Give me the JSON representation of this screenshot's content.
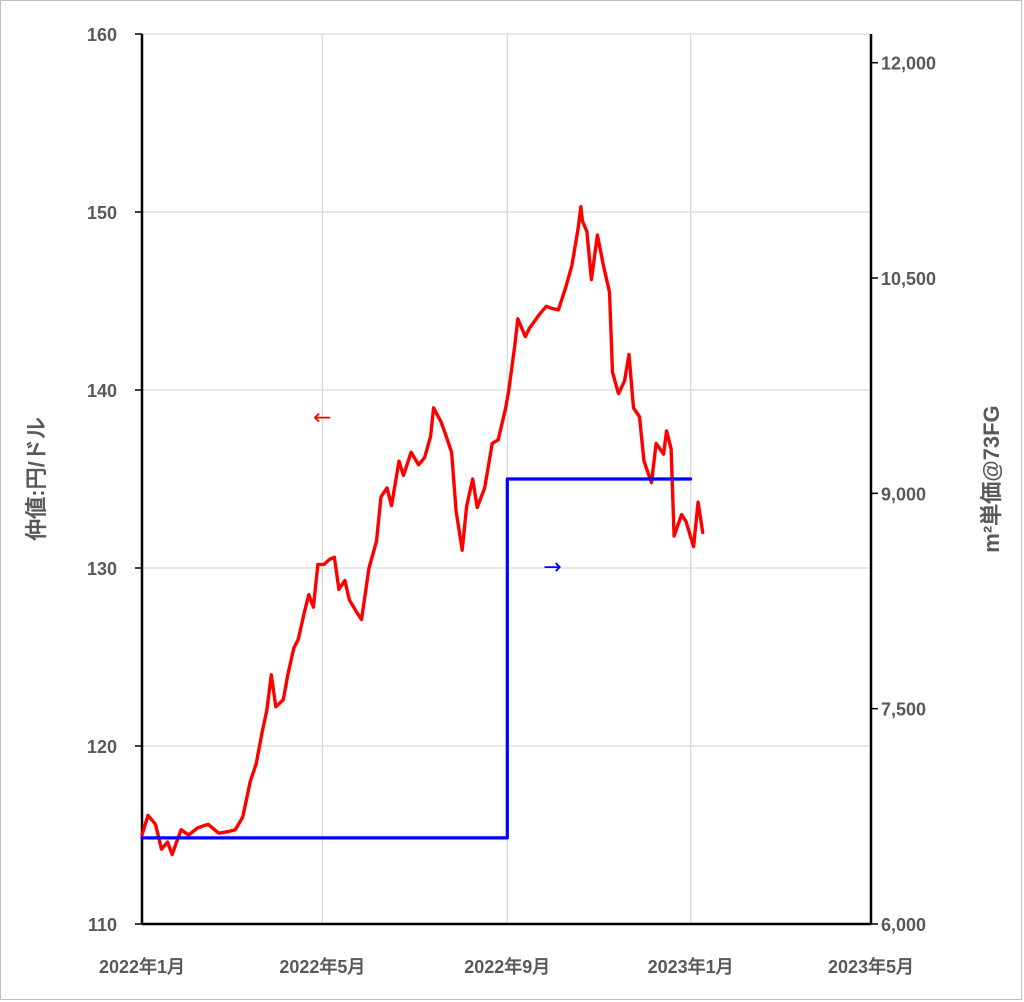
{
  "chart_data": {
    "type": "line",
    "y_left_label": "仲値:円/ドル",
    "y_right_label": "m²単価@73FG",
    "x_ticks": [
      "2022年1月",
      "2022年5月",
      "2022年9月",
      "2023年1月",
      "2023年5月"
    ],
    "y_left_ticks": [
      "110",
      "120",
      "130",
      "140",
      "150",
      "160"
    ],
    "y_right_ticks": [
      "6,000",
      "7,500",
      "9,000",
      "10,500",
      "12,000"
    ],
    "y_left_lim": [
      110,
      160
    ],
    "y_right_lim": [
      6000,
      12200
    ],
    "x_lim": [
      "2022-01-01",
      "2023-05-01"
    ],
    "grid": true,
    "series": [
      {
        "color": "#ff0000",
        "axis": "left",
        "points": [
          [
            "2022-01-01",
            115.0
          ],
          [
            "2022-01-05",
            116.1
          ],
          [
            "2022-01-10",
            115.6
          ],
          [
            "2022-01-14",
            114.2
          ],
          [
            "2022-01-18",
            114.6
          ],
          [
            "2022-01-21",
            113.9
          ],
          [
            "2022-01-27",
            115.3
          ],
          [
            "2022-02-01",
            115.0
          ],
          [
            "2022-02-07",
            115.4
          ],
          [
            "2022-02-14",
            115.6
          ],
          [
            "2022-02-21",
            115.1
          ],
          [
            "2022-02-28",
            115.2
          ],
          [
            "2022-03-04",
            115.3
          ],
          [
            "2022-03-09",
            116.0
          ],
          [
            "2022-03-14",
            118.0
          ],
          [
            "2022-03-18",
            119.0
          ],
          [
            "2022-03-22",
            120.8
          ],
          [
            "2022-03-25",
            122.0
          ],
          [
            "2022-03-28",
            124.0
          ],
          [
            "2022-03-31",
            122.2
          ],
          [
            "2022-04-05",
            122.6
          ],
          [
            "2022-04-08",
            124.0
          ],
          [
            "2022-04-12",
            125.5
          ],
          [
            "2022-04-15",
            126.0
          ],
          [
            "2022-04-19",
            127.5
          ],
          [
            "2022-04-22",
            128.5
          ],
          [
            "2022-04-25",
            127.8
          ],
          [
            "2022-04-28",
            130.2
          ],
          [
            "2022-05-02",
            130.2
          ],
          [
            "2022-05-06",
            130.5
          ],
          [
            "2022-05-09",
            130.6
          ],
          [
            "2022-05-12",
            128.8
          ],
          [
            "2022-05-16",
            129.3
          ],
          [
            "2022-05-19",
            128.2
          ],
          [
            "2022-05-24",
            127.5
          ],
          [
            "2022-05-27",
            127.1
          ],
          [
            "2022-06-01",
            130.0
          ],
          [
            "2022-06-06",
            131.5
          ],
          [
            "2022-06-09",
            134.0
          ],
          [
            "2022-06-13",
            134.5
          ],
          [
            "2022-06-16",
            133.5
          ],
          [
            "2022-06-21",
            136.0
          ],
          [
            "2022-06-24",
            135.2
          ],
          [
            "2022-06-29",
            136.5
          ],
          [
            "2022-07-04",
            135.8
          ],
          [
            "2022-07-08",
            136.2
          ],
          [
            "2022-07-12",
            137.4
          ],
          [
            "2022-07-14",
            139.0
          ],
          [
            "2022-07-19",
            138.2
          ],
          [
            "2022-07-22",
            137.5
          ],
          [
            "2022-07-26",
            136.5
          ],
          [
            "2022-07-29",
            133.2
          ],
          [
            "2022-08-02",
            131.0
          ],
          [
            "2022-08-05",
            133.5
          ],
          [
            "2022-08-09",
            135.0
          ],
          [
            "2022-08-12",
            133.4
          ],
          [
            "2022-08-17",
            134.5
          ],
          [
            "2022-08-22",
            137.0
          ],
          [
            "2022-08-26",
            137.2
          ],
          [
            "2022-08-31",
            139.0
          ],
          [
            "2022-09-02",
            140.0
          ],
          [
            "2022-09-06",
            142.5
          ],
          [
            "2022-09-08",
            144.0
          ],
          [
            "2022-09-13",
            143.0
          ],
          [
            "2022-09-16",
            143.5
          ],
          [
            "2022-09-22",
            144.2
          ],
          [
            "2022-09-27",
            144.7
          ],
          [
            "2022-09-30",
            144.6
          ],
          [
            "2022-10-05",
            144.5
          ],
          [
            "2022-10-10",
            145.8
          ],
          [
            "2022-10-14",
            147.0
          ],
          [
            "2022-10-18",
            149.0
          ],
          [
            "2022-10-20",
            150.3
          ],
          [
            "2022-10-21",
            149.5
          ],
          [
            "2022-10-24",
            148.9
          ],
          [
            "2022-10-27",
            146.2
          ],
          [
            "2022-10-31",
            148.7
          ],
          [
            "2022-11-04",
            147.0
          ],
          [
            "2022-11-08",
            145.5
          ],
          [
            "2022-11-10",
            141.0
          ],
          [
            "2022-11-14",
            139.8
          ],
          [
            "2022-11-18",
            140.5
          ],
          [
            "2022-11-21",
            142.0
          ],
          [
            "2022-11-24",
            139.0
          ],
          [
            "2022-11-28",
            138.5
          ],
          [
            "2022-12-01",
            136.0
          ],
          [
            "2022-12-06",
            134.8
          ],
          [
            "2022-12-09",
            137.0
          ],
          [
            "2022-12-14",
            136.4
          ],
          [
            "2022-12-16",
            137.7
          ],
          [
            "2022-12-19",
            136.7
          ],
          [
            "2022-12-21",
            131.8
          ],
          [
            "2022-12-26",
            133.0
          ],
          [
            "2022-12-29",
            132.6
          ],
          [
            "2023-01-03",
            131.2
          ],
          [
            "2023-01-06",
            133.7
          ],
          [
            "2023-01-09",
            132.0
          ]
        ]
      },
      {
        "color": "#0000ff",
        "axis": "right",
        "step": true,
        "points": [
          [
            "2022-01-01",
            6600
          ],
          [
            "2022-09-01",
            6600
          ],
          [
            "2022-09-01",
            9100
          ],
          [
            "2023-01-01",
            9100
          ]
        ]
      }
    ],
    "annotations": [
      {
        "text": "←",
        "color": "#ff0000",
        "x": "2022-05-01",
        "y": 138.5,
        "axis": "left"
      },
      {
        "text": "→",
        "color": "#0000ff",
        "x": "2022-10-01",
        "y": 130.1,
        "axis": "left"
      }
    ]
  }
}
